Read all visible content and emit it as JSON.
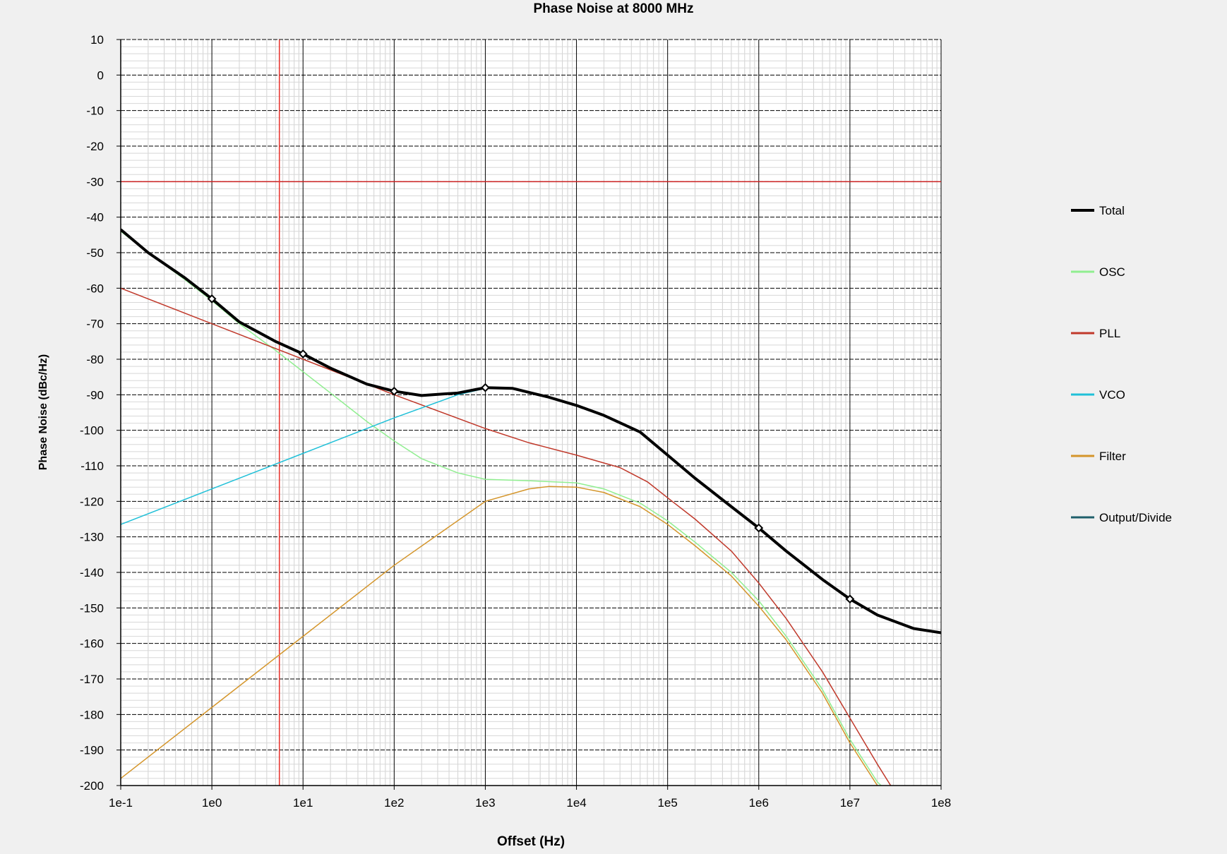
{
  "chart_data": {
    "type": "line",
    "title": "Phase Noise at 8000 MHz",
    "xlabel": "Offset (Hz)",
    "ylabel": "Phase Noise (dBc/Hz)",
    "x_scale": "log",
    "xlim": [
      0.1,
      100000000
    ],
    "ylim": [
      -200,
      10
    ],
    "x_ticks": [
      "1e-1",
      "1e0",
      "1e1",
      "1e2",
      "1e3",
      "1e4",
      "1e5",
      "1e6",
      "1e7",
      "1e8"
    ],
    "y_ticks": [
      "10",
      "0",
      "-10",
      "-20",
      "-30",
      "-40",
      "-50",
      "-60",
      "-70",
      "-80",
      "-90",
      "-100",
      "-110",
      "-120",
      "-130",
      "-140",
      "-150",
      "-160",
      "-170",
      "-180",
      "-190",
      "-200"
    ],
    "grid": "on (major solid/dashed, minor light)",
    "legend_position": "right",
    "reference_lines": {
      "horizontal_y": -30,
      "vertical_x": 5.5,
      "color": "#cc2222"
    },
    "series": [
      {
        "name": "Total",
        "color": "#000000",
        "markers": true,
        "points": [
          [
            0.1,
            -43.5
          ],
          [
            0.2,
            -50
          ],
          [
            0.5,
            -57
          ],
          [
            1,
            -63
          ],
          [
            2,
            -69.5
          ],
          [
            5,
            -75
          ],
          [
            10,
            -78.5
          ],
          [
            20,
            -82.5
          ],
          [
            50,
            -87
          ],
          [
            100,
            -89
          ],
          [
            200,
            -90.2
          ],
          [
            500,
            -89.5
          ],
          [
            1000,
            -88
          ],
          [
            2000,
            -88.2
          ],
          [
            5000,
            -90.7
          ],
          [
            10000,
            -93
          ],
          [
            20000,
            -95.8
          ],
          [
            50000,
            -100.5
          ],
          [
            100000,
            -107
          ],
          [
            200000,
            -113.5
          ],
          [
            500000,
            -121.5
          ],
          [
            1000000,
            -127.5
          ],
          [
            2000000,
            -134
          ],
          [
            5000000,
            -142
          ],
          [
            10000000,
            -147.5
          ],
          [
            20000000,
            -152
          ],
          [
            50000000,
            -155.8
          ],
          [
            100000000,
            -157
          ]
        ]
      },
      {
        "name": "OSC",
        "color": "#90ee90",
        "points": [
          [
            0.1,
            -44
          ],
          [
            0.2,
            -50
          ],
          [
            0.5,
            -57.5
          ],
          [
            1,
            -63.5
          ],
          [
            2,
            -70
          ],
          [
            5,
            -77.5
          ],
          [
            10,
            -83.5
          ],
          [
            20,
            -89.5
          ],
          [
            50,
            -97.5
          ],
          [
            100,
            -103
          ],
          [
            200,
            -108
          ],
          [
            500,
            -112
          ],
          [
            1000,
            -113.8
          ],
          [
            3000,
            -114.2
          ],
          [
            10000,
            -114.8
          ],
          [
            20000,
            -116.5
          ],
          [
            50000,
            -120.5
          ],
          [
            100000,
            -125.5
          ],
          [
            200000,
            -131.5
          ],
          [
            500000,
            -140
          ],
          [
            1000000,
            -148
          ],
          [
            2000000,
            -158
          ],
          [
            5000000,
            -173
          ],
          [
            10000000,
            -187
          ],
          [
            20000000,
            -199
          ],
          [
            22000000,
            -200
          ]
        ]
      },
      {
        "name": "PLL",
        "color": "#c0392b",
        "points": [
          [
            0.1,
            -60
          ],
          [
            1,
            -70
          ],
          [
            10,
            -80
          ],
          [
            100,
            -90
          ],
          [
            1000,
            -99.5
          ],
          [
            3000,
            -103.5
          ],
          [
            10000,
            -107
          ],
          [
            30000,
            -110.5
          ],
          [
            60000,
            -114.5
          ],
          [
            100000,
            -119
          ],
          [
            200000,
            -125
          ],
          [
            500000,
            -134
          ],
          [
            1000000,
            -143
          ],
          [
            2000000,
            -153
          ],
          [
            5000000,
            -168
          ],
          [
            10000000,
            -181
          ],
          [
            20000000,
            -194
          ],
          [
            28000000,
            -200
          ]
        ]
      },
      {
        "name": "VCO",
        "color": "#20c0d8",
        "points": [
          [
            0.1,
            -126.5
          ],
          [
            1,
            -116.5
          ],
          [
            10,
            -106.5
          ],
          [
            100,
            -96.5
          ],
          [
            500,
            -90
          ],
          [
            1000,
            -88.2
          ],
          [
            2000,
            -88.2
          ],
          [
            5000,
            -90.5
          ],
          [
            10000,
            -93
          ],
          [
            20000,
            -95.8
          ],
          [
            50000,
            -100.5
          ],
          [
            100000,
            -107
          ],
          [
            200000,
            -113.5
          ],
          [
            500000,
            -121.5
          ],
          [
            1000000,
            -127.5
          ],
          [
            2000000,
            -134
          ],
          [
            5000000,
            -142
          ],
          [
            10000000,
            -147.5
          ],
          [
            20000000,
            -152
          ],
          [
            50000000,
            -155.8
          ],
          [
            100000000,
            -157
          ]
        ]
      },
      {
        "name": "Filter",
        "color": "#d4952a",
        "points": [
          [
            0.1,
            -198
          ],
          [
            1,
            -178
          ],
          [
            10,
            -158
          ],
          [
            100,
            -138
          ],
          [
            1000,
            -120
          ],
          [
            3000,
            -116.5
          ],
          [
            5000,
            -115.8
          ],
          [
            10000,
            -116
          ],
          [
            20000,
            -117.5
          ],
          [
            50000,
            -121.5
          ],
          [
            100000,
            -126.5
          ],
          [
            200000,
            -132.5
          ],
          [
            500000,
            -141
          ],
          [
            1000000,
            -149.5
          ],
          [
            2000000,
            -159
          ],
          [
            5000000,
            -174
          ],
          [
            10000000,
            -188
          ],
          [
            20000000,
            -200
          ]
        ]
      },
      {
        "name": "Output/Divide",
        "color": "#1f5f6b",
        "points": [
          [
            0.1,
            -43.5
          ],
          [
            0.2,
            -50
          ],
          [
            0.5,
            -57
          ],
          [
            1,
            -63
          ],
          [
            2,
            -69.5
          ],
          [
            5,
            -75
          ],
          [
            10,
            -78.5
          ],
          [
            20,
            -82.5
          ],
          [
            50,
            -87
          ],
          [
            100,
            -89
          ],
          [
            200,
            -90.2
          ],
          [
            500,
            -89.5
          ],
          [
            1000,
            -88
          ],
          [
            2000,
            -88.2
          ],
          [
            5000,
            -90.7
          ],
          [
            10000,
            -93
          ],
          [
            20000,
            -95.8
          ],
          [
            50000,
            -100.5
          ],
          [
            100000,
            -107
          ],
          [
            200000,
            -113.5
          ],
          [
            500000,
            -121.5
          ],
          [
            1000000,
            -127.5
          ],
          [
            2000000,
            -134
          ],
          [
            5000000,
            -142
          ],
          [
            10000000,
            -147.5
          ],
          [
            20000000,
            -152
          ],
          [
            50000000,
            -155.8
          ],
          [
            100000000,
            -157
          ]
        ]
      }
    ],
    "marker_points": [
      [
        1,
        -63
      ],
      [
        10,
        -78.5
      ],
      [
        100,
        -89
      ],
      [
        1000,
        -88
      ],
      [
        1000000,
        -127.5
      ],
      [
        10000000,
        -147.5
      ]
    ]
  }
}
